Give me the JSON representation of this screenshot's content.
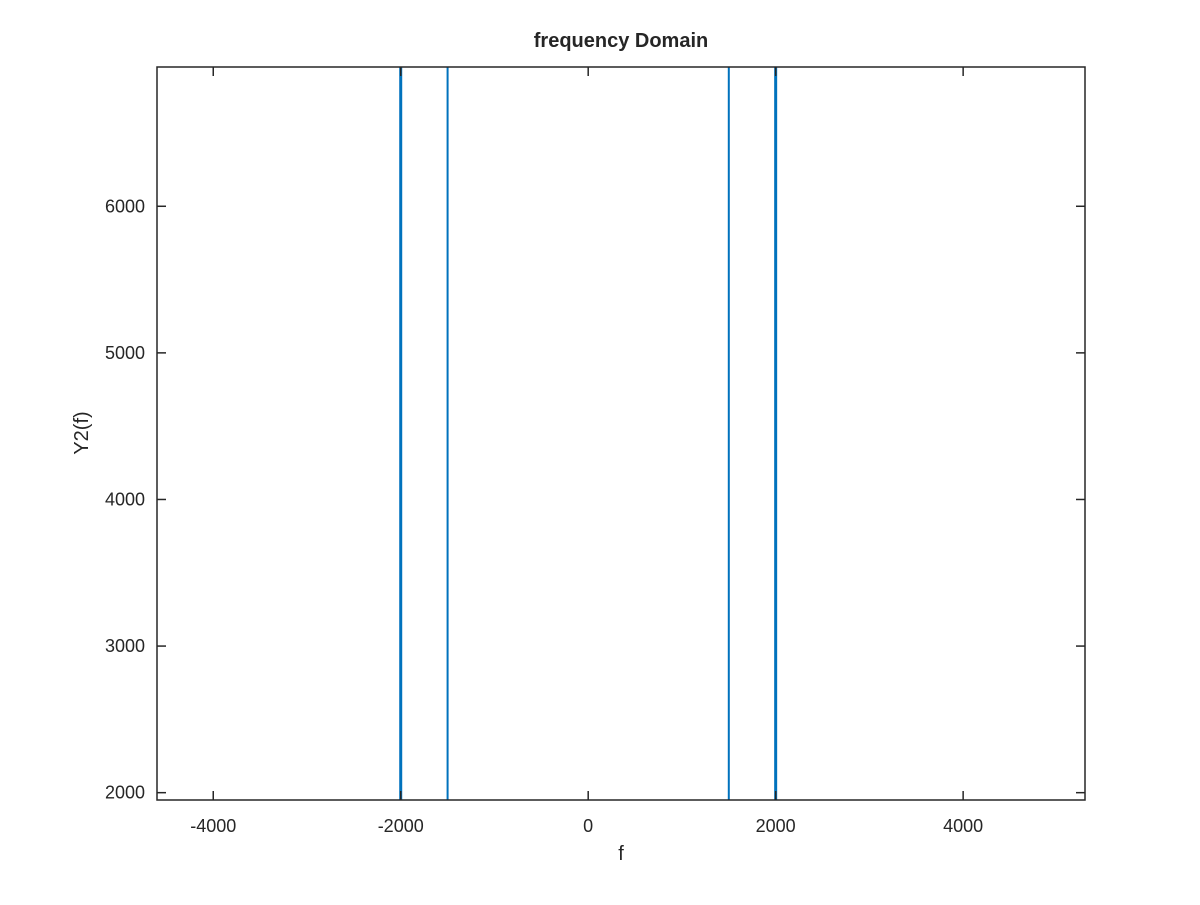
{
  "chart_data": {
    "type": "line",
    "title": "frequency Domain",
    "xlabel": "f",
    "ylabel": "Y2(f)",
    "xlim": [
      -4600,
      5300
    ],
    "ylim": [
      1950,
      6950
    ],
    "xticks": [
      -4000,
      -2000,
      0,
      2000,
      4000
    ],
    "yticks": [
      2000,
      3000,
      4000,
      5000,
      6000
    ],
    "xtick_labels": [
      "-4000",
      "-2000",
      "0",
      "2000",
      "4000"
    ],
    "ytick_labels": [
      "2000",
      "3000",
      "4000",
      "5000",
      "6000"
    ],
    "grid": false,
    "legend": "none",
    "series": [
      {
        "color": "#0072bd",
        "peaks": [
          {
            "x": -2000,
            "weight": "thick"
          },
          {
            "x": -1500,
            "weight": "thin"
          },
          {
            "x": 1500,
            "weight": "thin"
          },
          {
            "x": 2000,
            "weight": "thick"
          }
        ]
      }
    ]
  },
  "colors": {
    "line": "#0072bd",
    "axes": "#262626",
    "background": "#ffffff"
  }
}
